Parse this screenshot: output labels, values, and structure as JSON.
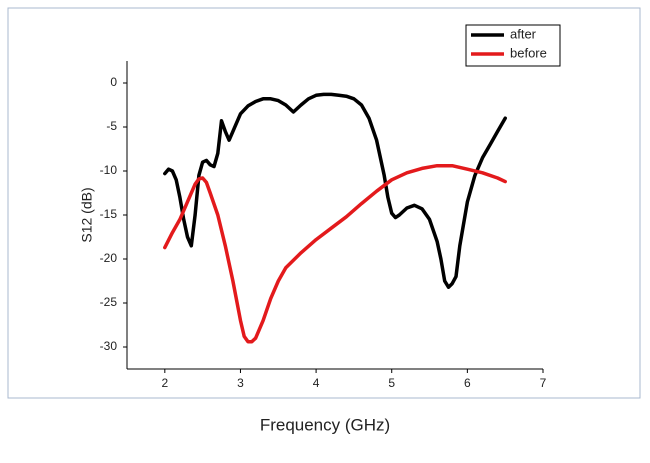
{
  "chart_data": {
    "type": "line",
    "x_label": "Frequency (GHz)",
    "y_label": "S12 (dB)",
    "xlim": [
      1.5,
      7
    ],
    "xticks": [
      2,
      3,
      4,
      5,
      6,
      7
    ],
    "ylim": [
      -32.5,
      2.5
    ],
    "yticks": [
      0,
      -5,
      -10,
      -15,
      -20,
      -25,
      -30
    ],
    "legend": "top-right",
    "series": [
      {
        "name": "after",
        "color": "#000000",
        "x": [
          2.0,
          2.05,
          2.1,
          2.15,
          2.2,
          2.25,
          2.3,
          2.35,
          2.4,
          2.45,
          2.5,
          2.55,
          2.6,
          2.65,
          2.7,
          2.75,
          2.8,
          2.85,
          2.9,
          3.0,
          3.1,
          3.2,
          3.3,
          3.4,
          3.5,
          3.6,
          3.7,
          3.8,
          3.9,
          4.0,
          4.1,
          4.2,
          4.3,
          4.4,
          4.5,
          4.6,
          4.7,
          4.8,
          4.9,
          4.95,
          5.0,
          5.05,
          5.1,
          5.2,
          5.3,
          5.4,
          5.5,
          5.6,
          5.65,
          5.7,
          5.75,
          5.8,
          5.85,
          5.9,
          6.0,
          6.1,
          6.2,
          6.3,
          6.4,
          6.5
        ],
        "values": [
          -10.3,
          -9.8,
          -10.0,
          -11.0,
          -13,
          -15.5,
          -17.5,
          -18.5,
          -15,
          -10.5,
          -9,
          -8.8,
          -9.3,
          -9.5,
          -8,
          -4.3,
          -5.5,
          -6.5,
          -5.5,
          -3.5,
          -2.6,
          -2.1,
          -1.8,
          -1.8,
          -2.0,
          -2.5,
          -3.3,
          -2.5,
          -1.8,
          -1.4,
          -1.3,
          -1.3,
          -1.4,
          -1.5,
          -1.8,
          -2.5,
          -4,
          -6.5,
          -10.5,
          -13,
          -14.8,
          -15.3,
          -15,
          -14.2,
          -13.9,
          -14.3,
          -15.5,
          -18,
          -20,
          -22.5,
          -23.2,
          -22.8,
          -22,
          -18.5,
          -13.5,
          -10.5,
          -8.5,
          -7,
          -5.5,
          -4
        ]
      },
      {
        "name": "before",
        "color": "#e31a1c",
        "x": [
          2.0,
          2.1,
          2.2,
          2.3,
          2.4,
          2.45,
          2.5,
          2.55,
          2.6,
          2.7,
          2.8,
          2.9,
          3.0,
          3.05,
          3.1,
          3.15,
          3.2,
          3.3,
          3.4,
          3.5,
          3.6,
          3.8,
          4.0,
          4.2,
          4.4,
          4.6,
          4.8,
          5.0,
          5.2,
          5.4,
          5.6,
          5.8,
          6.0,
          6.2,
          6.4,
          6.5
        ],
        "values": [
          -18.7,
          -17,
          -15.5,
          -13.5,
          -11.5,
          -10.9,
          -10.8,
          -11.3,
          -12.5,
          -15,
          -18.5,
          -22.5,
          -27,
          -28.8,
          -29.4,
          -29.4,
          -29,
          -27,
          -24.5,
          -22.5,
          -21,
          -19.3,
          -17.8,
          -16.5,
          -15.2,
          -13.7,
          -12.3,
          -11,
          -10.2,
          -9.7,
          -9.4,
          -9.4,
          -9.8,
          -10.2,
          -10.8,
          -11.2
        ]
      }
    ]
  }
}
